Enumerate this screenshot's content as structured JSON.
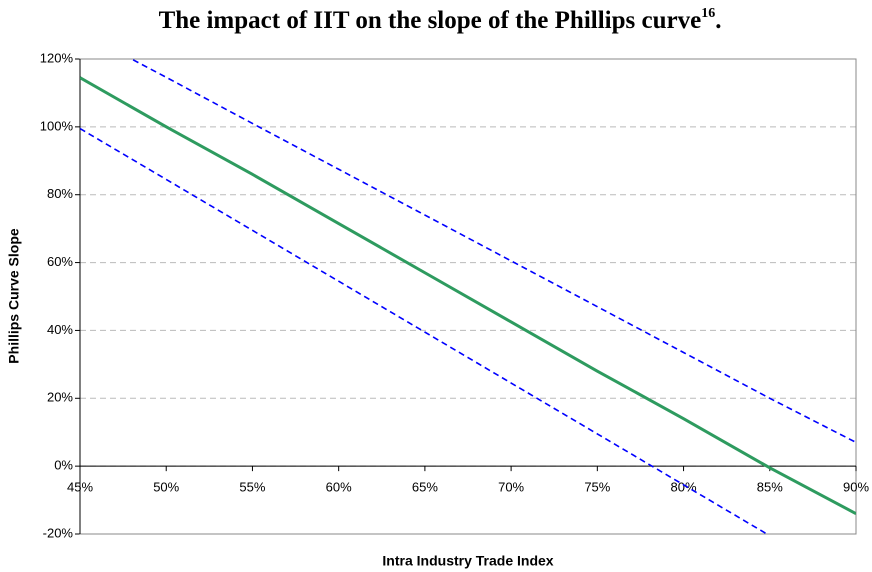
{
  "chart_data": {
    "type": "line",
    "title": "The impact of IIT on the slope of the Phillips curve",
    "title_footnote": "16",
    "title_end": ".",
    "x_label": "Intra Industry Trade Index",
    "y_label": "Phillips Curve Slope",
    "x": [
      45,
      50,
      55,
      60,
      65,
      70,
      75,
      80,
      85,
      90
    ],
    "series": [
      {
        "color": "#2e9b5f",
        "dash": false,
        "values": [
          114.5,
          100,
          86,
          71.5,
          57,
          42.5,
          28,
          14,
          -0.5,
          -14
        ]
      },
      {
        "color": "#0000ff",
        "dash": true,
        "values": [
          128,
          114.6,
          101,
          87.5,
          74,
          60.5,
          47,
          33.5,
          20,
          7
        ]
      },
      {
        "color": "#0000ff",
        "dash": true,
        "values": [
          99.5,
          84.5,
          69.5,
          54.5,
          39.5,
          24.5,
          9.5,
          -5.5,
          -20.5,
          -35.5
        ]
      }
    ],
    "xlim": [
      45,
      90
    ],
    "ylim": [
      -20,
      120
    ],
    "xticks": [
      {
        "value": 45,
        "label": "45%"
      },
      {
        "value": 50,
        "label": "50%"
      },
      {
        "value": 55,
        "label": "55%"
      },
      {
        "value": 60,
        "label": "60%"
      },
      {
        "value": 65,
        "label": "65%"
      },
      {
        "value": 70,
        "label": "70%"
      },
      {
        "value": 75,
        "label": "75%"
      },
      {
        "value": 80,
        "label": "80%"
      },
      {
        "value": 85,
        "label": "85%"
      },
      {
        "value": 90,
        "label": "90%"
      }
    ],
    "yticks": [
      {
        "value": -20,
        "label": "-20%"
      },
      {
        "value": 0,
        "label": "0%"
      },
      {
        "value": 20,
        "label": "20%"
      },
      {
        "value": 40,
        "label": "40%"
      },
      {
        "value": 60,
        "label": "60%"
      },
      {
        "value": 80,
        "label": "80%"
      },
      {
        "value": 100,
        "label": "100%"
      },
      {
        "value": 120,
        "label": "120%"
      }
    ],
    "grid": true
  }
}
